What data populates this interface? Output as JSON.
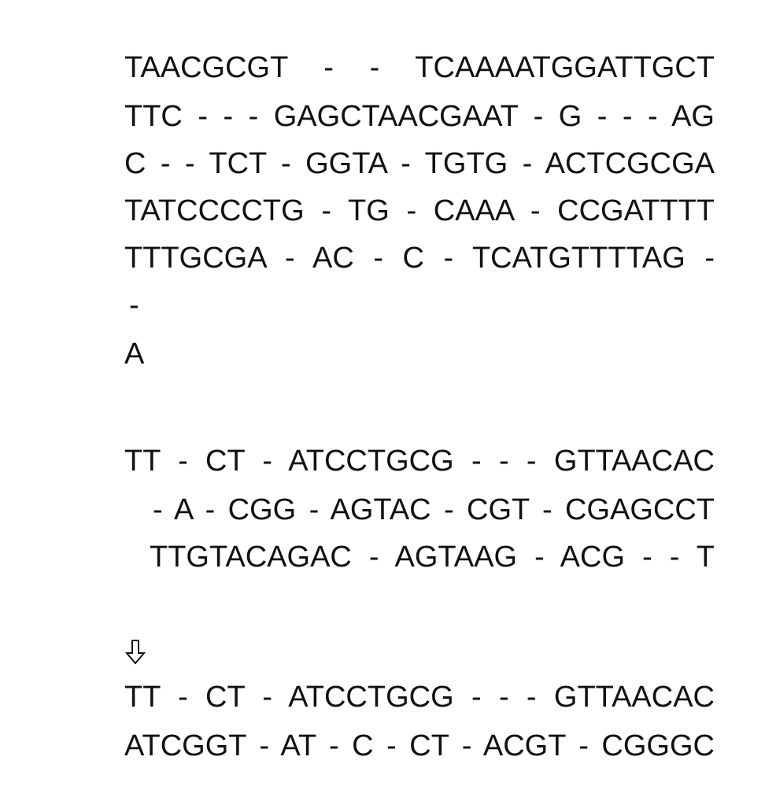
{
  "block1": {
    "lines": [
      "TAACGCGT - - TCAAAATGGATTGCT",
      "TTC - - - GAGCTAACGAAT - G - - - AG",
      "C - - TCT - GGTA - TGTG - ACTCGCGA",
      "TATCCCCTG - TG - CAAA - CCGATTTT",
      "TTTGCGA - AC - C - TCATGTTTTAG -",
      "-",
      "A"
    ]
  },
  "block2": {
    "lines": [
      "TT - CT - ATCCTGCG - - - GTTAACAC",
      "- A - CGG - AGTAC - CGT - CGAGCCT",
      "TTGTACAGAC - AGTAAG - ACG - - T"
    ]
  },
  "arrow_icon": "down-arrow-icon",
  "block3": {
    "lines": [
      "TT - CT - ATCCTGCG - - - GTTAACAC",
      "ATCGGT - AT - C - CT - ACGT - CGGGC"
    ]
  }
}
